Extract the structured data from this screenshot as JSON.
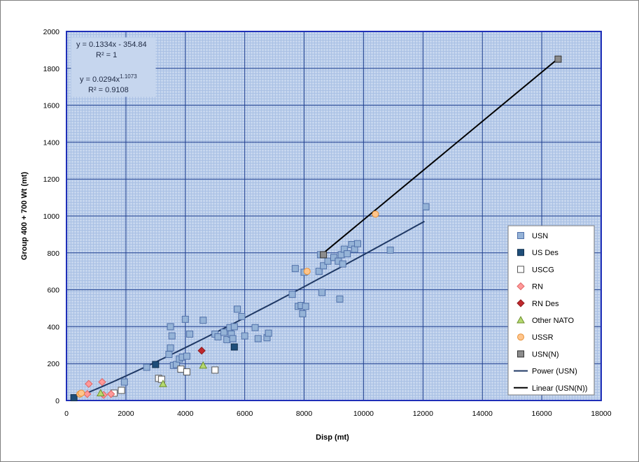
{
  "chart_data": {
    "type": "scatter",
    "title": "",
    "xlabel": "Disp (mt)",
    "ylabel": "Group 400 + 700 Wt (mt)",
    "xlim": [
      0,
      18000
    ],
    "ylim": [
      0,
      2000
    ],
    "xticks": [
      "0",
      "2000",
      "4000",
      "6000",
      "8000",
      "10000",
      "12000",
      "14000",
      "16000",
      "18000"
    ],
    "yticks": [
      "0",
      "200",
      "400",
      "600",
      "800",
      "1000",
      "1200",
      "1400",
      "1600",
      "1800",
      "2000"
    ],
    "grid": true,
    "legend_position": "right",
    "annotations": {
      "linear_eq": "y = 0.1334x - 354.84",
      "linear_r2": "R² = 1",
      "power_eq_base": "y = 0.0294x",
      "power_eq_exp": "1.1073",
      "power_r2": "R² = 0.9108"
    },
    "series": [
      {
        "name": "USN",
        "marker": "square",
        "color": "#95b3d7",
        "stroke": "#4f6fa8",
        "points": [
          [
            1950,
            100
          ],
          [
            2700,
            180
          ],
          [
            3450,
            250
          ],
          [
            3500,
            400
          ],
          [
            3500,
            285
          ],
          [
            3550,
            350
          ],
          [
            3600,
            190
          ],
          [
            3700,
            195
          ],
          [
            3800,
            225
          ],
          [
            3900,
            235
          ],
          [
            4000,
            440
          ],
          [
            4050,
            240
          ],
          [
            4150,
            360
          ],
          [
            4600,
            435
          ],
          [
            5000,
            360
          ],
          [
            5100,
            345
          ],
          [
            5300,
            370
          ],
          [
            5400,
            330
          ],
          [
            5500,
            395
          ],
          [
            5550,
            360
          ],
          [
            5600,
            335
          ],
          [
            5650,
            400
          ],
          [
            5750,
            495
          ],
          [
            5900,
            455
          ],
          [
            6000,
            350
          ],
          [
            6350,
            395
          ],
          [
            6450,
            335
          ],
          [
            6750,
            340
          ],
          [
            6800,
            365
          ],
          [
            7600,
            575
          ],
          [
            7700,
            715
          ],
          [
            7800,
            510
          ],
          [
            7900,
            515
          ],
          [
            7950,
            470
          ],
          [
            8000,
            695
          ],
          [
            8050,
            510
          ],
          [
            8500,
            700
          ],
          [
            8550,
            790
          ],
          [
            8600,
            585
          ],
          [
            8650,
            730
          ],
          [
            8800,
            755
          ],
          [
            9000,
            775
          ],
          [
            9150,
            755
          ],
          [
            9200,
            550
          ],
          [
            9250,
            790
          ],
          [
            9300,
            740
          ],
          [
            9350,
            820
          ],
          [
            9450,
            795
          ],
          [
            9600,
            845
          ],
          [
            9700,
            820
          ],
          [
            9800,
            850
          ],
          [
            10900,
            815
          ],
          [
            12100,
            1050
          ]
        ]
      },
      {
        "name": "US Des",
        "marker": "square",
        "color": "#1f4e79",
        "stroke": "#12304f",
        "points": [
          [
            250,
            15
          ],
          [
            3000,
            195
          ],
          [
            5650,
            290
          ]
        ]
      },
      {
        "name": "USCG",
        "marker": "square",
        "color": "#ffffff",
        "stroke": "#555555",
        "points": [
          [
            1600,
            40
          ],
          [
            1850,
            55
          ],
          [
            3100,
            120
          ],
          [
            3200,
            115
          ],
          [
            3850,
            170
          ],
          [
            4050,
            155
          ],
          [
            5000,
            165
          ]
        ]
      },
      {
        "name": "RN",
        "marker": "diamond",
        "color": "#ff9999",
        "stroke": "#e06666",
        "points": [
          [
            700,
            35
          ],
          [
            750,
            90
          ],
          [
            1200,
            100
          ],
          [
            1250,
            30
          ],
          [
            1500,
            35
          ]
        ]
      },
      {
        "name": "RN Des",
        "marker": "diamond",
        "color": "#c0282d",
        "stroke": "#8b1a1e",
        "points": [
          [
            4550,
            270
          ]
        ]
      },
      {
        "name": "Other NATO",
        "marker": "triangle",
        "color": "#b5d96f",
        "stroke": "#6d8f2e",
        "points": [
          [
            1150,
            40
          ],
          [
            3250,
            90
          ],
          [
            4600,
            190
          ]
        ]
      },
      {
        "name": "USSR",
        "marker": "circle",
        "color": "#ffc58c",
        "stroke": "#e69138",
        "points": [
          [
            450,
            35
          ],
          [
            500,
            40
          ],
          [
            8100,
            700
          ],
          [
            10400,
            1010
          ]
        ]
      },
      {
        "name": "USN(N)",
        "marker": "square",
        "color": "#8c8c8c",
        "stroke": "#333333",
        "points": [
          [
            8650,
            790
          ],
          [
            16550,
            1850
          ]
        ]
      }
    ],
    "trendlines": [
      {
        "name": "Power (USN)",
        "type": "power",
        "a": 0.0294,
        "b": 1.1073,
        "x_range": [
          600,
          12050
        ],
        "color": "#1f3864"
      },
      {
        "name": "Linear (USN(N))",
        "type": "linear",
        "slope": 0.1334,
        "intercept": -354.84,
        "x_range": [
          8650,
          16550
        ],
        "color": "#000000"
      }
    ]
  }
}
